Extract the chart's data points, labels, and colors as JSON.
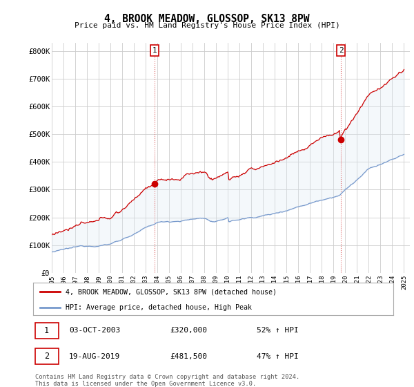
{
  "title": "4, BROOK MEADOW, GLOSSOP, SK13 8PW",
  "subtitle": "Price paid vs. HM Land Registry's House Price Index (HPI)",
  "legend_label_red": "4, BROOK MEADOW, GLOSSOP, SK13 8PW (detached house)",
  "legend_label_blue": "HPI: Average price, detached house, High Peak",
  "annotation1_date": "03-OCT-2003",
  "annotation1_price": "£320,000",
  "annotation1_hpi": "52% ↑ HPI",
  "annotation2_date": "19-AUG-2019",
  "annotation2_price": "£481,500",
  "annotation2_hpi": "47% ↑ HPI",
  "footer": "Contains HM Land Registry data © Crown copyright and database right 2024.\nThis data is licensed under the Open Government Licence v3.0.",
  "red_color": "#cc0000",
  "blue_color": "#7799cc",
  "fill_color": "#dde8f5",
  "vline_color": "#dd6666",
  "grid_color": "#cccccc",
  "background_color": "#ffffff",
  "ylim": [
    0,
    830000
  ],
  "xlim_start": 1995.0,
  "xlim_end": 2025.5,
  "sale1_t": 2003.75,
  "sale1_p": 320000,
  "sale2_t": 2019.625,
  "sale2_p": 481500
}
